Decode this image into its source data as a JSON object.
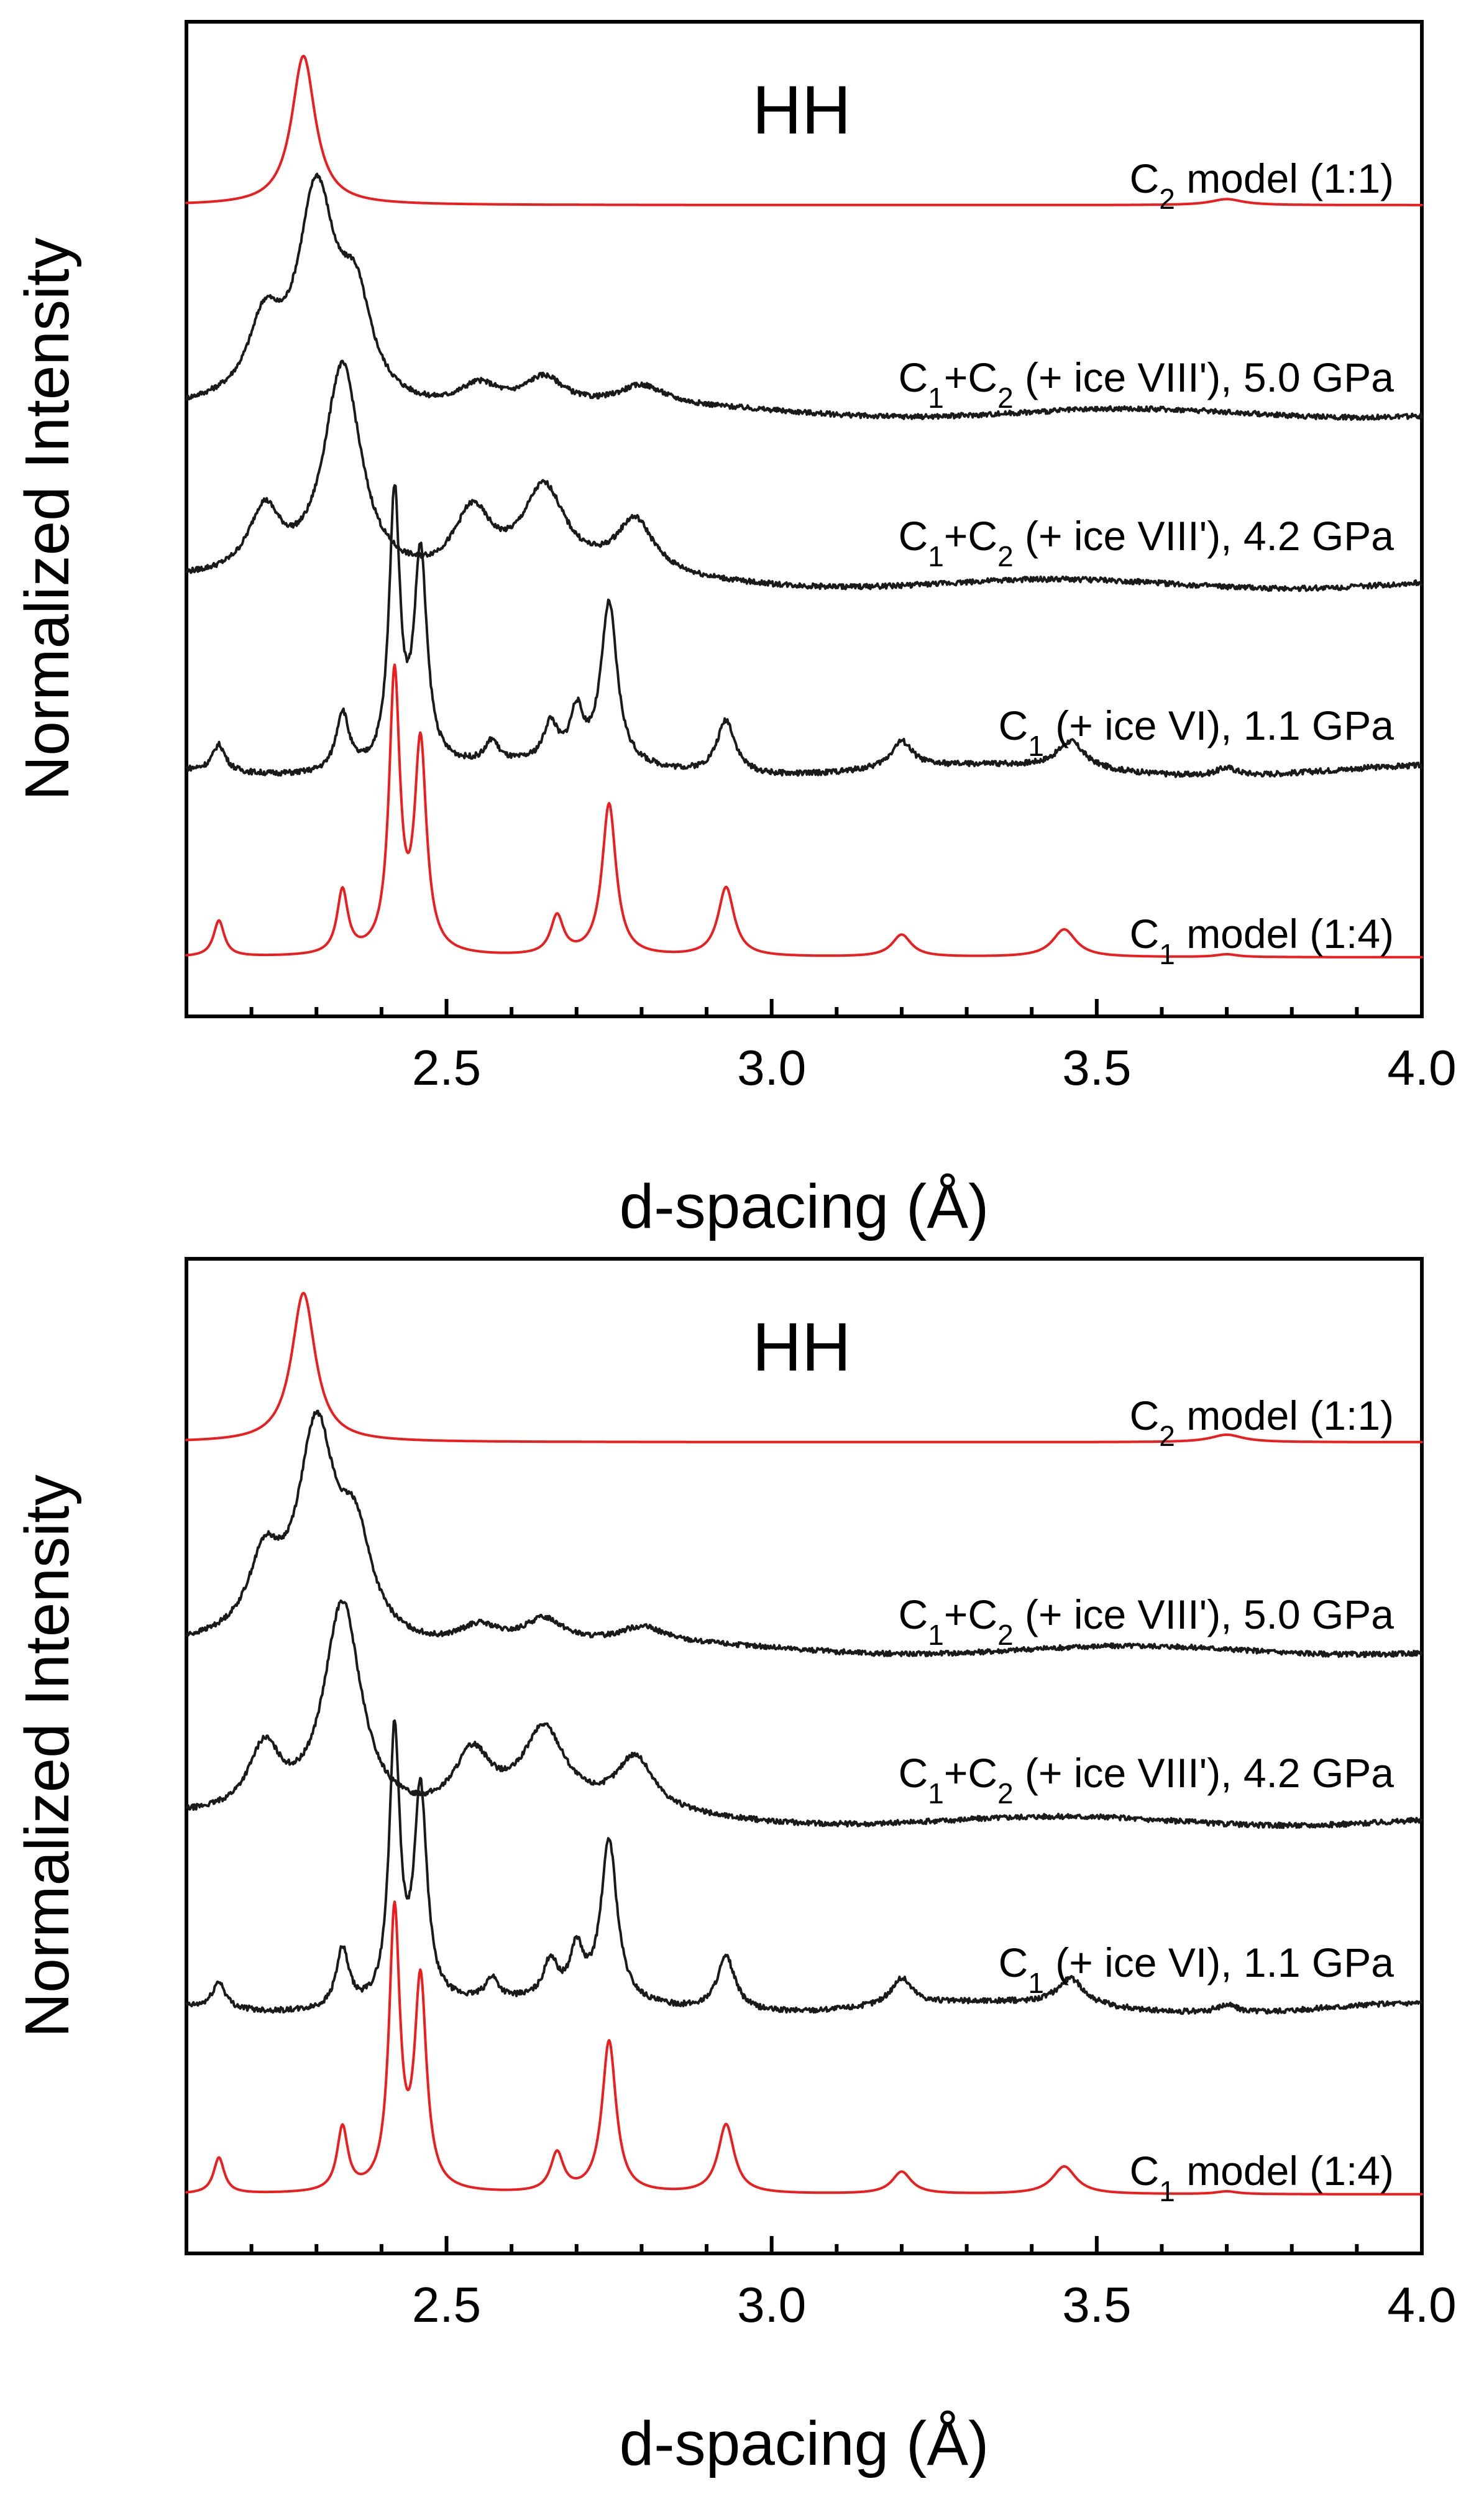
{
  "colors": {
    "model": "#ee1c1c",
    "data": "#1a1a1a",
    "axis": "#000000"
  },
  "chart_data": [
    {
      "type": "line",
      "panel_label": "HH",
      "xlabel": "d-spacing (Å)",
      "ylabel": "Normalized Intensity",
      "xlim": [
        2.1,
        4.0
      ],
      "xticks": [
        "2.5",
        "3.0",
        "3.5",
        "4.0"
      ],
      "y_ticks_labeled": false,
      "series": [
        {
          "label_main": "C",
          "label_sub": "2",
          "label_rest": " model (1:1)",
          "color": "model",
          "peaks": [
            [
              2.28,
              1.0,
              0.022
            ],
            [
              3.7,
              0.04,
              0.03
            ]
          ],
          "noise": 0
        },
        {
          "label_main": "C",
          "label_sub": "1",
          "label_mid": "+C",
          "label_sub2": "2",
          "label_rest": " (+ ice VIII'), 5.0 GPa",
          "color": "data",
          "peaks": [
            [
              2.22,
              0.35,
              0.03
            ],
            [
              2.3,
              1.0,
              0.035
            ],
            [
              2.36,
              0.45,
              0.03
            ],
            [
              2.55,
              0.12,
              0.04
            ],
            [
              2.65,
              0.15,
              0.04
            ],
            [
              2.8,
              0.1,
              0.045
            ]
          ],
          "noise": 0.012
        },
        {
          "label_main": "C",
          "label_sub": "1",
          "label_mid": "+C",
          "label_sub2": "2",
          "label_rest": " (+ ice VIII'), 4.2 GPa",
          "color": "data",
          "peaks": [
            [
              2.22,
              0.3,
              0.03
            ],
            [
              2.34,
              1.0,
              0.035
            ],
            [
              2.54,
              0.3,
              0.035
            ],
            [
              2.65,
              0.4,
              0.04
            ],
            [
              2.79,
              0.25,
              0.035
            ]
          ],
          "noise": 0.012
        },
        {
          "label_main": "C",
          "label_sub": "1",
          "label_rest": " (+ ice VI), 1.1 GPa",
          "color": "data",
          "peaks": [
            [
              2.15,
              0.1,
              0.012
            ],
            [
              2.34,
              0.22,
              0.012
            ],
            [
              2.42,
              1.0,
              0.01
            ],
            [
              2.46,
              0.78,
              0.012
            ],
            [
              2.57,
              0.08,
              0.012
            ],
            [
              2.66,
              0.14,
              0.013
            ],
            [
              2.7,
              0.18,
              0.012
            ],
            [
              2.75,
              0.6,
              0.015
            ],
            [
              2.93,
              0.2,
              0.017
            ],
            [
              3.2,
              0.1,
              0.02
            ],
            [
              3.46,
              0.1,
              0.025
            ],
            [
              3.7,
              0.03,
              0.02
            ]
          ],
          "noise": 0.01
        },
        {
          "label_main": "C",
          "label_sub": "1",
          "label_rest": " model (1:4)",
          "color": "model",
          "peaks": [
            [
              2.15,
              0.13,
              0.01
            ],
            [
              2.34,
              0.23,
              0.01
            ],
            [
              2.42,
              1.0,
              0.01
            ],
            [
              2.46,
              0.75,
              0.011
            ],
            [
              2.67,
              0.14,
              0.012
            ],
            [
              2.75,
              0.55,
              0.013
            ],
            [
              2.93,
              0.25,
              0.015
            ],
            [
              3.2,
              0.08,
              0.018
            ],
            [
              3.45,
              0.1,
              0.022
            ],
            [
              3.7,
              0.01,
              0.02
            ]
          ],
          "noise": 0
        }
      ]
    },
    {
      "type": "line",
      "panel_label": "HH",
      "xlabel": "d-spacing (Å)",
      "ylabel": "Normalized Intensity",
      "xlim": [
        2.1,
        4.0
      ],
      "xticks": [
        "2.5",
        "3.0",
        "3.5",
        "4.0"
      ],
      "y_ticks_labeled": false,
      "series": [
        {
          "label_main": "C",
          "label_sub": "2",
          "label_rest": " model (1:1)",
          "color": "model",
          "peaks": [
            [
              2.28,
              1.0,
              0.022
            ],
            [
              3.7,
              0.05,
              0.03
            ]
          ],
          "noise": 0
        },
        {
          "label_main": "C",
          "label_sub": "1",
          "label_mid": "+C",
          "label_sub2": "2",
          "label_rest": " (+ ice VIII'), 5.0 GPa",
          "color": "data",
          "peaks": [
            [
              2.22,
              0.35,
              0.03
            ],
            [
              2.3,
              1.0,
              0.035
            ],
            [
              2.36,
              0.45,
              0.03
            ],
            [
              2.55,
              0.1,
              0.04
            ],
            [
              2.65,
              0.13,
              0.04
            ],
            [
              2.8,
              0.08,
              0.045
            ]
          ],
          "noise": 0.012
        },
        {
          "label_main": "C",
          "label_sub": "1",
          "label_mid": "+C",
          "label_sub2": "2",
          "label_rest": " (+ ice VIII'), 4.2 GPa",
          "color": "data",
          "peaks": [
            [
              2.22,
              0.3,
              0.03
            ],
            [
              2.34,
              1.0,
              0.035
            ],
            [
              2.54,
              0.28,
              0.035
            ],
            [
              2.65,
              0.38,
              0.04
            ],
            [
              2.79,
              0.25,
              0.035
            ]
          ],
          "noise": 0.012
        },
        {
          "label_main": "C",
          "label_sub": "1",
          "label_rest": " (+ ice VI), 1.1 GPa",
          "color": "data",
          "peaks": [
            [
              2.15,
              0.1,
              0.012
            ],
            [
              2.34,
              0.22,
              0.012
            ],
            [
              2.42,
              1.0,
              0.01
            ],
            [
              2.46,
              0.78,
              0.012
            ],
            [
              2.57,
              0.08,
              0.012
            ],
            [
              2.66,
              0.14,
              0.013
            ],
            [
              2.7,
              0.18,
              0.012
            ],
            [
              2.75,
              0.6,
              0.015
            ],
            [
              2.93,
              0.2,
              0.017
            ],
            [
              3.2,
              0.1,
              0.02
            ],
            [
              3.46,
              0.1,
              0.025
            ],
            [
              3.7,
              0.03,
              0.02
            ]
          ],
          "noise": 0.01
        },
        {
          "label_main": "C",
          "label_sub": "1",
          "label_rest": " model (1:4)",
          "color": "model",
          "peaks": [
            [
              2.15,
              0.13,
              0.01
            ],
            [
              2.34,
              0.23,
              0.01
            ],
            [
              2.42,
              1.0,
              0.01
            ],
            [
              2.46,
              0.75,
              0.011
            ],
            [
              2.67,
              0.14,
              0.012
            ],
            [
              2.75,
              0.55,
              0.013
            ],
            [
              2.93,
              0.25,
              0.015
            ],
            [
              3.2,
              0.08,
              0.018
            ],
            [
              3.45,
              0.1,
              0.022
            ],
            [
              3.7,
              0.01,
              0.02
            ]
          ],
          "noise": 0
        }
      ]
    }
  ]
}
